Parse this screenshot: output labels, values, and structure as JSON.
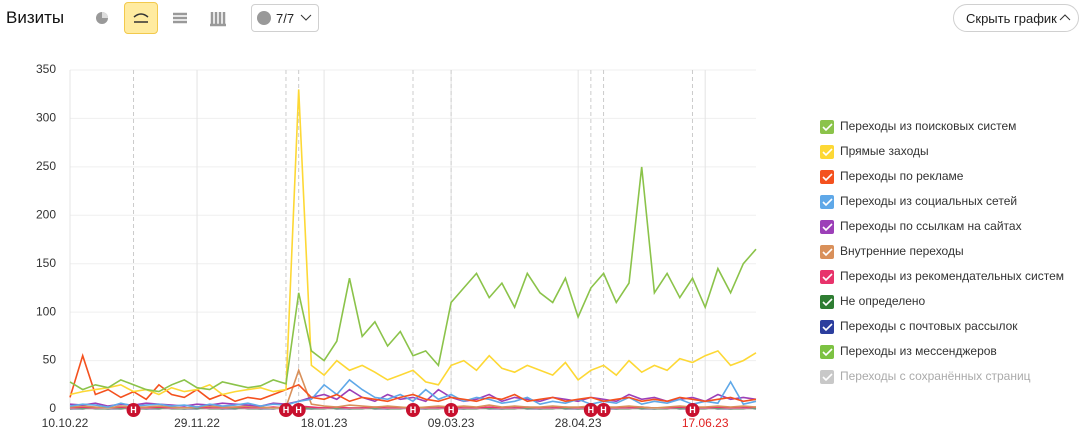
{
  "toolbar": {
    "title": "Визиты",
    "counter": "7/7",
    "hide_button": "Скрыть график"
  },
  "chart_data": {
    "type": "line",
    "categories": [
      "10.10.22",
      null,
      null,
      null,
      null,
      null,
      null,
      null,
      null,
      null,
      "29.11.22",
      null,
      null,
      null,
      null,
      null,
      null,
      null,
      null,
      null,
      "18.01.23",
      null,
      null,
      null,
      null,
      null,
      null,
      null,
      null,
      null,
      "09.03.23",
      null,
      null,
      null,
      null,
      null,
      null,
      null,
      null,
      null,
      "28.04.23",
      null,
      null,
      null,
      null,
      null,
      null,
      null,
      null,
      null,
      "17.06.23",
      null,
      null,
      null,
      null
    ],
    "highlighted_categories": [
      50
    ],
    "highlight_color": "#e02020",
    "ylim": [
      0,
      350
    ],
    "yticks": [
      0,
      50,
      100,
      150,
      200,
      250,
      300,
      350
    ],
    "grid": true,
    "notes": {
      "label": "Н",
      "at": [
        5,
        17,
        18,
        27,
        30,
        41,
        42,
        49
      ],
      "color": "#c8102e"
    },
    "series": [
      {
        "name": "Переходы из поисковых систем",
        "color": "#8bc34a",
        "values": [
          28,
          20,
          25,
          22,
          30,
          25,
          20,
          18,
          25,
          30,
          22,
          20,
          28,
          25,
          22,
          24,
          30,
          26,
          120,
          60,
          50,
          70,
          135,
          75,
          90,
          65,
          80,
          55,
          60,
          45,
          110,
          125,
          140,
          115,
          130,
          105,
          140,
          120,
          110,
          135,
          95,
          125,
          140,
          110,
          130,
          250,
          120,
          140,
          115,
          135,
          105,
          145,
          120,
          150,
          165
        ]
      },
      {
        "name": "Прямые заходы",
        "color": "#fdd835",
        "values": [
          15,
          18,
          20,
          22,
          25,
          18,
          20,
          15,
          22,
          18,
          20,
          25,
          15,
          18,
          20,
          22,
          18,
          20,
          330,
          45,
          35,
          50,
          40,
          45,
          38,
          30,
          35,
          40,
          28,
          25,
          45,
          50,
          40,
          55,
          42,
          38,
          45,
          40,
          35,
          48,
          30,
          40,
          45,
          35,
          50,
          38,
          45,
          40,
          52,
          48,
          55,
          60,
          45,
          50,
          58
        ]
      },
      {
        "name": "Переходы по рекламе",
        "color": "#f4511e",
        "values": [
          12,
          55,
          15,
          20,
          12,
          18,
          10,
          25,
          15,
          12,
          20,
          10,
          15,
          8,
          12,
          10,
          15,
          20,
          25,
          12,
          10,
          15,
          8,
          12,
          10,
          8,
          12,
          15,
          10,
          8,
          12,
          10,
          8,
          12,
          10,
          15,
          8,
          10,
          12,
          8,
          10,
          12,
          8,
          10,
          12,
          8,
          10,
          8,
          12,
          10,
          8,
          10,
          12,
          8,
          10
        ]
      },
      {
        "name": "Переходы из социальных сетей",
        "color": "#5fa8e8",
        "values": [
          3,
          5,
          4,
          2,
          6,
          3,
          4,
          5,
          3,
          4,
          2,
          5,
          3,
          4,
          6,
          3,
          5,
          4,
          8,
          10,
          25,
          15,
          30,
          20,
          12,
          10,
          15,
          8,
          20,
          10,
          15,
          8,
          12,
          10,
          6,
          8,
          12,
          5,
          8,
          6,
          10,
          5,
          8,
          6,
          12,
          5,
          8,
          6,
          10,
          5,
          8,
          6,
          28,
          5,
          8
        ]
      },
      {
        "name": "Переходы по ссылкам на сайтах",
        "color": "#9c3fb8",
        "values": [
          5,
          4,
          6,
          3,
          5,
          4,
          6,
          5,
          4,
          3,
          5,
          4,
          6,
          5,
          4,
          3,
          6,
          5,
          8,
          12,
          15,
          10,
          20,
          12,
          8,
          15,
          10,
          12,
          8,
          20,
          12,
          8,
          10,
          15,
          8,
          12,
          10,
          8,
          12,
          10,
          8,
          12,
          10,
          8,
          15,
          10,
          12,
          8,
          10,
          12,
          8,
          15,
          10,
          12,
          10
        ]
      },
      {
        "name": "Внутренние переходы",
        "color": "#d9905a",
        "values": [
          2,
          3,
          2,
          1,
          3,
          2,
          2,
          3,
          2,
          1,
          2,
          3,
          2,
          2,
          3,
          2,
          1,
          2,
          40,
          5,
          3,
          2,
          4,
          3,
          2,
          3,
          2,
          1,
          2,
          3,
          2,
          3,
          2,
          4,
          2,
          3,
          2,
          2,
          3,
          2,
          2,
          3,
          2,
          2,
          3,
          2,
          1,
          2,
          3,
          2,
          2,
          3,
          2,
          3,
          2
        ]
      },
      {
        "name": "Переходы из рекомендательных систем",
        "color": "#e8336b",
        "values": [
          1,
          2,
          1,
          1,
          2,
          1,
          1,
          2,
          1,
          1,
          2,
          1,
          1,
          2,
          1,
          1,
          2,
          1,
          3,
          2,
          1,
          2,
          1,
          1,
          2,
          1,
          1,
          2,
          1,
          1,
          2,
          1,
          1,
          2,
          1,
          1,
          2,
          1,
          1,
          2,
          1,
          1,
          2,
          1,
          1,
          2,
          1,
          1,
          2,
          1,
          1,
          2,
          1,
          1,
          2
        ]
      },
      {
        "name": "Не определено",
        "color": "#2e7d32",
        "values": [
          0,
          1,
          0,
          0,
          1,
          0,
          0,
          1,
          0,
          0,
          1,
          0,
          0,
          1,
          0,
          0,
          1,
          0,
          1,
          0,
          0,
          1,
          0,
          0,
          1,
          0,
          0,
          1,
          0,
          0,
          1,
          0,
          0,
          1,
          0,
          0,
          1,
          0,
          0,
          1,
          0,
          0,
          1,
          0,
          0,
          1,
          0,
          0,
          1,
          0,
          0,
          1,
          0,
          0,
          1
        ]
      },
      {
        "name": "Переходы с почтовых рассылок",
        "color": "#2c3e9e",
        "values": [
          0,
          0,
          1,
          0,
          0,
          1,
          0,
          0,
          1,
          0,
          0,
          1,
          0,
          0,
          1,
          0,
          0,
          1,
          0,
          0,
          1,
          0,
          0,
          1,
          0,
          0,
          1,
          0,
          0,
          1,
          0,
          0,
          1,
          0,
          0,
          1,
          0,
          0,
          1,
          0,
          0,
          1,
          0,
          0,
          1,
          0,
          0,
          1,
          0,
          0,
          1,
          0,
          0,
          1,
          0
        ]
      },
      {
        "name": "Переходы из мессенджеров",
        "color": "#7cc242",
        "values": [
          1,
          0,
          1,
          1,
          0,
          1,
          1,
          0,
          1,
          1,
          0,
          1,
          1,
          0,
          1,
          1,
          0,
          1,
          2,
          1,
          1,
          0,
          1,
          1,
          0,
          1,
          1,
          0,
          1,
          1,
          0,
          1,
          1,
          0,
          1,
          1,
          0,
          1,
          1,
          0,
          1,
          1,
          0,
          1,
          1,
          0,
          1,
          1,
          0,
          1,
          1,
          0,
          1,
          1,
          0
        ]
      },
      {
        "name": "Переходы с сохранённых страниц",
        "color": "#c8c8c8",
        "enabled": false
      }
    ]
  }
}
